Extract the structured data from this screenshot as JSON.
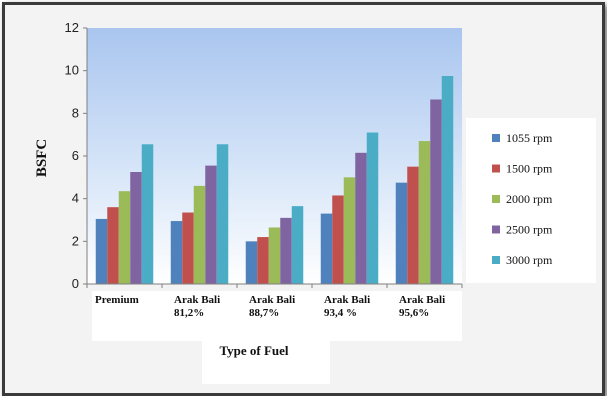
{
  "chart_data": {
    "type": "bar",
    "title": "",
    "xlabel": "Type of Fuel",
    "ylabel": "BSFC",
    "ylim": [
      0,
      12
    ],
    "yticks": [
      0,
      2,
      4,
      6,
      8,
      10,
      12
    ],
    "grid": false,
    "legend_position": "right",
    "categories": [
      [
        "Premium"
      ],
      [
        "Arak Bali",
        "81,2%"
      ],
      [
        "Arak Bali",
        "88,7%"
      ],
      [
        "Arak Bali",
        "93,4 %"
      ],
      [
        "Arak Bali",
        "95,6%"
      ]
    ],
    "series": [
      {
        "name": "1055 rpm",
        "color": "#4f81bd",
        "values": [
          3.05,
          2.95,
          2.0,
          3.3,
          4.75
        ]
      },
      {
        "name": "1500 rpm",
        "color": "#c0504d",
        "values": [
          3.6,
          3.35,
          2.2,
          4.15,
          5.5
        ]
      },
      {
        "name": "2000 rpm",
        "color": "#9bbb59",
        "values": [
          4.35,
          4.6,
          2.65,
          5.0,
          6.7
        ]
      },
      {
        "name": "2500 rpm",
        "color": "#8064a2",
        "values": [
          5.25,
          5.55,
          3.1,
          6.15,
          8.65
        ]
      },
      {
        "name": "3000 rpm",
        "color": "#4bacc6",
        "values": [
          6.55,
          6.55,
          3.65,
          7.1,
          9.75
        ]
      }
    ]
  }
}
